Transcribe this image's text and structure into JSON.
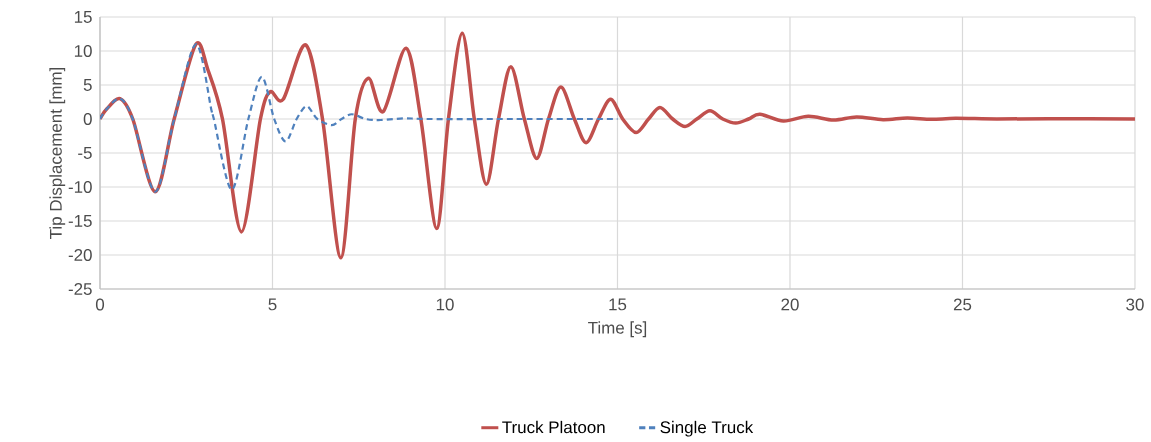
{
  "chart_data": {
    "type": "line",
    "xlabel": "Time [s]",
    "ylabel": "Tip Displacement [mm]",
    "xlim": [
      0,
      30
    ],
    "ylim": [
      -25,
      15
    ],
    "xticks": [
      0,
      5,
      10,
      15,
      20,
      25,
      30
    ],
    "yticks": [
      -25,
      -20,
      -15,
      -10,
      -5,
      0,
      5,
      10,
      15
    ],
    "grid": true,
    "legend": "bottom",
    "series": [
      {
        "name": "Truck Platoon",
        "color": "#c0504d",
        "line_style": "solid",
        "x": [
          0,
          0.2,
          0.58,
          0.95,
          1.6,
          2.15,
          2.78,
          3.13,
          3.55,
          4.1,
          4.65,
          4.93,
          5.31,
          5.96,
          6.45,
          6.98,
          7.4,
          7.78,
          8.21,
          8.87,
          9.3,
          9.76,
          10.1,
          10.5,
          10.85,
          11.2,
          11.55,
          11.91,
          12.3,
          12.66,
          13.0,
          13.36,
          13.75,
          14.09,
          14.45,
          14.8,
          15.15,
          15.54,
          15.9,
          16.23,
          16.6,
          16.96,
          17.3,
          17.68,
          18.05,
          18.43,
          18.8,
          19.13,
          19.81,
          20.53,
          21.26,
          21.93,
          22.7,
          23.4,
          24.1,
          24.8,
          26,
          27.5,
          30
        ],
        "values": [
          0,
          1.5,
          3.0,
          0,
          -10.7,
          0,
          11.0,
          7.2,
          0,
          -16.6,
          0,
          4.0,
          2.9,
          10.9,
          0,
          -20.4,
          0,
          6.0,
          1.1,
          10.4,
          0,
          -16.1,
          0,
          12.6,
          0,
          -9.6,
          0,
          7.7,
          0,
          -5.8,
          0,
          4.7,
          0,
          -3.5,
          0,
          2.9,
          0,
          -2.0,
          0,
          1.7,
          0,
          -1.1,
          0,
          1.2,
          0,
          -0.6,
          0,
          0.7,
          -0.3,
          0.4,
          -0.15,
          0.3,
          -0.1,
          0.15,
          -0.05,
          0.1,
          0,
          0.05,
          0
        ]
      },
      {
        "name": "Single Truck",
        "color": "#4f81bd",
        "line_style": "dashed",
        "x": [
          0,
          0.2,
          0.58,
          0.95,
          1.6,
          2.15,
          2.78,
          3.23,
          3.3,
          3.82,
          4.3,
          4.69,
          5.05,
          5.38,
          5.7,
          5.99,
          6.3,
          6.72,
          7.0,
          7.3,
          7.7,
          8.14,
          8.83,
          9.5,
          12,
          15
        ],
        "values": [
          0,
          1.5,
          3.0,
          0,
          -10.7,
          0,
          11.0,
          1.3,
          0,
          -10.4,
          0,
          6.2,
          0,
          -3.3,
          0,
          1.9,
          0,
          -0.9,
          0,
          0.7,
          0,
          -0.15,
          0.1,
          0,
          0,
          0
        ]
      }
    ]
  }
}
